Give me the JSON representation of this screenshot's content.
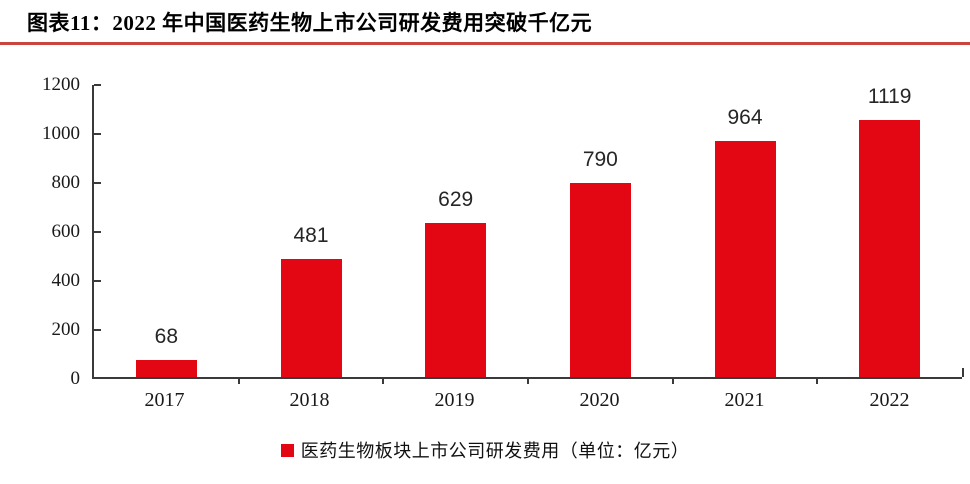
{
  "header": {
    "title": "图表11：2022 年中国医药生物上市公司研发费用突破千亿元"
  },
  "colors": {
    "bar": "#e30613",
    "title_rule": "#c9453e",
    "axis": "#3a3a3a",
    "tick_label": "#1a1a1a",
    "data_label": "#262626",
    "background": "#ffffff"
  },
  "legend": {
    "marker": "red-square",
    "label": "医药生物板块上市公司研发费用（单位：亿元）"
  },
  "chart_data": {
    "type": "bar",
    "title": "图表11：2022 年中国医药生物上市公司研发费用突破千亿元",
    "categories": [
      "2017",
      "2018",
      "2019",
      "2020",
      "2021",
      "2022"
    ],
    "values": [
      68,
      481,
      629,
      790,
      964,
      1119
    ],
    "series_name": "医药生物板块上市公司研发费用（单位：亿元）",
    "xlabel": "",
    "ylabel": "",
    "unit": "亿元",
    "ylim": [
      0,
      1200
    ],
    "yticks": [
      0,
      200,
      400,
      600,
      800,
      1000,
      1200
    ],
    "grid": false,
    "data_labels": true,
    "legend_position": "bottom",
    "bar_color": "#e30613"
  }
}
